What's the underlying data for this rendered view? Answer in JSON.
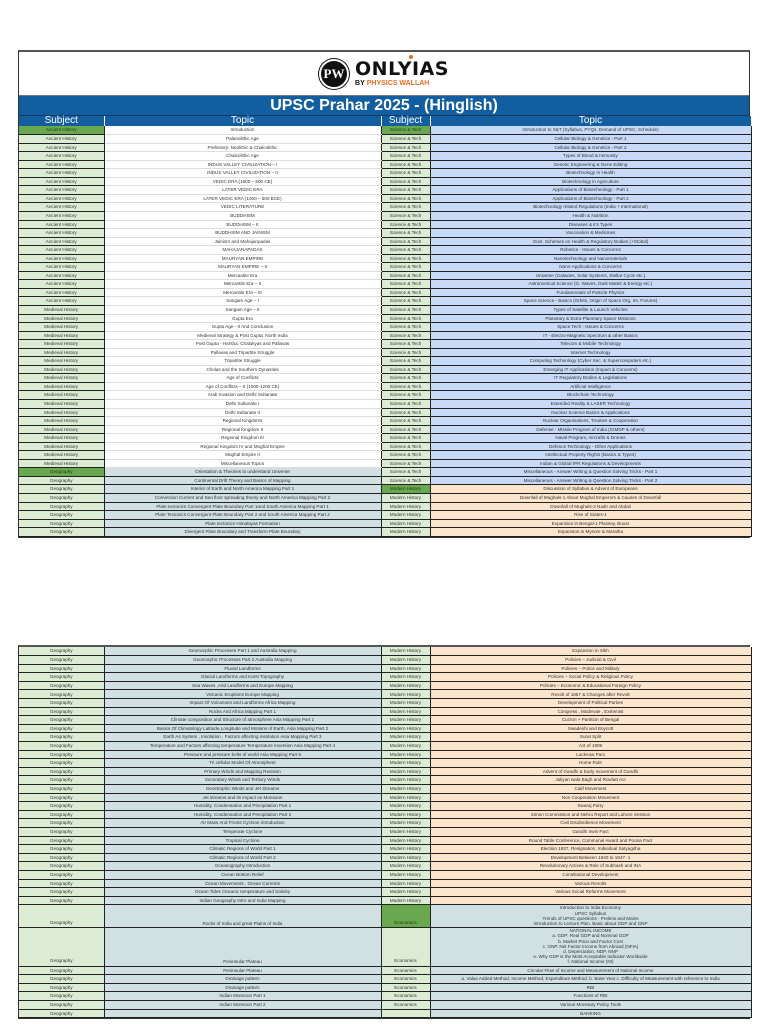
{
  "header": {
    "logo_mark": "PW",
    "brand_name": "ONLYIAS",
    "brand_by": "BY",
    "brand_sub": "PHYSICS WALLAH",
    "title": "UPSC Prahar 2025 - (Hinglish)",
    "columns": [
      "Subject",
      "Topic",
      "Subject",
      "Topic"
    ]
  },
  "colors": {
    "header_blue": "#135ea1",
    "subject_green_light": "#dcebd3",
    "subject_green_first": "#6aa84f",
    "science_tech_blue": "#c9daf8",
    "geography_blue": "#d0e0e3",
    "modern_history_peach": "#fce5cd",
    "brand_orange": "#f26b21"
  },
  "page1": {
    "left": [
      {
        "subject": "Ancient History",
        "topic": "Introduction",
        "first": true
      },
      {
        "subject": "Ancient History",
        "topic": "Palaeolithic Age"
      },
      {
        "subject": "Ancient History",
        "topic": "Prehistory: Neolithic & Chalcolithic"
      },
      {
        "subject": "Ancient History",
        "topic": "Chalcolithic Age"
      },
      {
        "subject": "Ancient History",
        "topic": "INDUS VALLEY CIVILIZATION – I"
      },
      {
        "subject": "Ancient History",
        "topic": "INDUS VALLEY CIVILIZATION – II"
      },
      {
        "subject": "Ancient History",
        "topic": "VEDIC ERA (1500 – 500 CE)"
      },
      {
        "subject": "Ancient History",
        "topic": "LATER VEDIC ERA"
      },
      {
        "subject": "Ancient History",
        "topic": "LATER VEDIC ERA (1000 – 500 BCE)"
      },
      {
        "subject": "Ancient History",
        "topic": "VEDIC LITERATURE"
      },
      {
        "subject": "Ancient History",
        "topic": "BUDDHISM"
      },
      {
        "subject": "Ancient History",
        "topic": "BUDDHISM – II"
      },
      {
        "subject": "Ancient History",
        "topic": "BUDDHISM AND JAINISM"
      },
      {
        "subject": "Ancient History",
        "topic": "Jainism and Mahajanpadas"
      },
      {
        "subject": "Ancient History",
        "topic": "MAHAJANAPADAS"
      },
      {
        "subject": "Ancient History",
        "topic": "MAURYAN EMPIRE"
      },
      {
        "subject": "Ancient History",
        "topic": "MAURYAN EMPIRE – II"
      },
      {
        "subject": "Ancient History",
        "topic": "Mercantile Era"
      },
      {
        "subject": "Ancient History",
        "topic": "Mercantile Era – II"
      },
      {
        "subject": "Ancient History",
        "topic": "Mercantile Era – III"
      },
      {
        "subject": "Ancient History",
        "topic": "Sangam Age – I"
      },
      {
        "subject": "Medieval History",
        "topic": "Sangam Age – II"
      },
      {
        "subject": "Medieval History",
        "topic": "Gupta Era"
      },
      {
        "subject": "Medieval History",
        "topic": "Gupta Age - II And Conclusion"
      },
      {
        "subject": "Medieval History",
        "topic": "Medieval Strategy & Post Gupta: North India"
      },
      {
        "subject": "Medieval History",
        "topic": "Post Gupta - Harsha, Chalukyas and Pallavas"
      },
      {
        "subject": "Medieval History",
        "topic": "Pallavas and Tripartite Struggle"
      },
      {
        "subject": "Medieval History",
        "topic": "Tripartite Struggle"
      },
      {
        "subject": "Medieval History",
        "topic": "Cholas and the Southern Dynasties"
      },
      {
        "subject": "Medieval History",
        "topic": "Age of Conflicts"
      },
      {
        "subject": "Medieval History",
        "topic": "Age of Conflicts – II (1000-1200 CE)"
      },
      {
        "subject": "Medieval History",
        "topic": "Arab Invasion and Delhi Sultanate"
      },
      {
        "subject": "Medieval History",
        "topic": "Delhi Sultanate I"
      },
      {
        "subject": "Medieval History",
        "topic": "Delhi Sultanate II"
      },
      {
        "subject": "Medieval History",
        "topic": "Regional Kingdoms"
      },
      {
        "subject": "Medieval History",
        "topic": "Regional Kingdom II"
      },
      {
        "subject": "Medieval History",
        "topic": "Regional Kingdom III"
      },
      {
        "subject": "Medieval History",
        "topic": "Regional Kingdom IV and Mughal Empire"
      },
      {
        "subject": "Medieval History",
        "topic": "Mughal Empire II"
      },
      {
        "subject": "Medieval History",
        "topic": "Miscellaneous Topics"
      },
      {
        "subject": "Geography",
        "topic": "Orientation & Theories to understand Universe",
        "first": true
      },
      {
        "subject": "Geography",
        "topic": "Continental Drift Theory and Basics of Mapping"
      },
      {
        "subject": "Geography",
        "topic": "Interior of Earth and North America Mapping Part 1"
      },
      {
        "subject": "Geography",
        "topic": "Convection Current and Sea floor spreading theory and North America Mapping Part 2"
      },
      {
        "subject": "Geography",
        "topic": "Plate tectonics Convergent Plate Boundary Part 1and South America Mapping Part 1"
      },
      {
        "subject": "Geography",
        "topic": "Plate Tectonics Convergent Plate Boundary Part 2 and South America Mapping Part 2"
      },
      {
        "subject": "Geography",
        "topic": "Plate tectonics Himalayas Formation"
      },
      {
        "subject": "Geography",
        "topic": "Divergent Plate Boundary and Transform Plate Boundary"
      }
    ],
    "right": [
      {
        "subject": "Science & Tech",
        "topic": "Introduction to S&T (Syllabus, PYQs, Demand of UPSC, Schedule)",
        "first": true
      },
      {
        "subject": "Science & Tech",
        "topic": "Cellular Biology & Genetics - Part 1"
      },
      {
        "subject": "Science & Tech",
        "topic": "Cellular Biology & Genetics - Part 2"
      },
      {
        "subject": "Science & Tech",
        "topic": "Types of Blood & Immunity"
      },
      {
        "subject": "Science & Tech",
        "topic": "Genetic Engineering & Gene Editing"
      },
      {
        "subject": "Science & Tech",
        "topic": "Biotechnology In Health"
      },
      {
        "subject": "Science & Tech",
        "topic": "Biotechnology in Agriculture"
      },
      {
        "subject": "Science & Tech",
        "topic": "Applications of Biotechnology - Part 1"
      },
      {
        "subject": "Science & Tech",
        "topic": "Applications of Biotechnology - Part 2"
      },
      {
        "subject": "Science & Tech",
        "topic": "Biotechnology related Regulations (India + International)"
      },
      {
        "subject": "Science & Tech",
        "topic": "Health & Nutrition"
      },
      {
        "subject": "Science & Tech",
        "topic": "Diseases & it's Types"
      },
      {
        "subject": "Science & Tech",
        "topic": "Vaccination & Medicines"
      },
      {
        "subject": "Science & Tech",
        "topic": "Govt. Schemes on Health & Regulatory Bodies (+Global)"
      },
      {
        "subject": "Science & Tech",
        "topic": "Robotics - Issues & Concerns"
      },
      {
        "subject": "Science & Tech",
        "topic": "Nanotechnology and Nanomaterials"
      },
      {
        "subject": "Science & Tech",
        "topic": "Nano-Applications & Concerns"
      },
      {
        "subject": "Science & Tech",
        "topic": "Universe (Galaxies, Solar Systems, Stellar Cycle etc.)"
      },
      {
        "subject": "Science & Tech",
        "topic": "Astronomical Science (G. Waves, Dark Matter & Energy etc.)"
      },
      {
        "subject": "Science & Tech",
        "topic": "Fundamentals of Particle Physics"
      },
      {
        "subject": "Science & Tech",
        "topic": "Space Science - Basics (Orbits, Origin of Space Org, Int. Forums)"
      },
      {
        "subject": "Science & Tech",
        "topic": "Types of Satellite & Launch Vehicles"
      },
      {
        "subject": "Science & Tech",
        "topic": "Planetary & Extra-Planetary Space Missions"
      },
      {
        "subject": "Science & Tech",
        "topic": "Space Tech - Issues & Concerns"
      },
      {
        "subject": "Science & Tech",
        "topic": "IT - Electro-Magnetic Spectrum & other Basics"
      },
      {
        "subject": "Science & Tech",
        "topic": "Telecom & Mobile Technology"
      },
      {
        "subject": "Science & Tech",
        "topic": "Internet Technology"
      },
      {
        "subject": "Science & Tech",
        "topic": "Computing Technology (Cyber Sec. & Supercomputers etc.)"
      },
      {
        "subject": "Science & Tech",
        "topic": "Emerging IT Applications (Impact & Concerns)"
      },
      {
        "subject": "Science & Tech",
        "topic": "IT Regulatory Bodies & Legislations"
      },
      {
        "subject": "Science & Tech",
        "topic": "Artificial Intelligence"
      },
      {
        "subject": "Science & Tech",
        "topic": "Blockchain Technology"
      },
      {
        "subject": "Science & Tech",
        "topic": "Extended Reality & LASER Technology"
      },
      {
        "subject": "Science & Tech",
        "topic": "Nuclear Science Basics & Applications"
      },
      {
        "subject": "Science & Tech",
        "topic": "Nuclear Organisations, Treaties & Cooperation"
      },
      {
        "subject": "Science & Tech",
        "topic": "Defense - Missile Program of India (IGMDP & others)"
      },
      {
        "subject": "Science & Tech",
        "topic": "Naval Program, Aircrafts & Drones"
      },
      {
        "subject": "Science & Tech",
        "topic": "Defence Technology - Other Applications"
      },
      {
        "subject": "Science & Tech",
        "topic": "Intellectual Property Rights (Basics & Types)"
      },
      {
        "subject": "Science & Tech",
        "topic": "Indian & Global IPR Regulations & Developments"
      },
      {
        "subject": "Science & Tech",
        "topic": "Miscellaneous - Answer Writing & Question Solving Tricks - Part 1"
      },
      {
        "subject": "Science & Tech",
        "topic": "Miscellaneous - Answer Writing & Question Solving Tricks - Part 2"
      },
      {
        "subject": "Modern History",
        "topic": "Discussion of Syllabus & Advent of Europeans",
        "first": true
      },
      {
        "subject": "Modern History",
        "topic": "Downfall of Mughals-1 About Mughal Emperors & Causes of Downfall"
      },
      {
        "subject": "Modern History",
        "topic": "Downfall of Mughals-3 Nadir and Abdali"
      },
      {
        "subject": "Modern History",
        "topic": "Rise of States-1"
      },
      {
        "subject": "Modern History",
        "topic": "Expansion in Bengal-1 Plassey, Buxar"
      },
      {
        "subject": "Modern History",
        "topic": "Expansion in Mysore & Maratha"
      }
    ]
  },
  "page2": {
    "left": [
      {
        "subject": "Geography",
        "topic": "Geomorphic Processes Part 1 and Australia Mapping"
      },
      {
        "subject": "Geography",
        "topic": "Geomorphic Processes Part 2 Australia Mapping"
      },
      {
        "subject": "Geography",
        "topic": "Fluvial Landforms"
      },
      {
        "subject": "Geography",
        "topic": "Glacial Landforms and  Karst Topography"
      },
      {
        "subject": "Geography",
        "topic": "Sea Waves ,Arid Landforms and Europe Mapping"
      },
      {
        "subject": "Geography",
        "topic": "Volcanic Eruptions Europe Mapping"
      },
      {
        "subject": "Geography",
        "topic": "Impact Of Volcanoes and Landforms Africa Mapping"
      },
      {
        "subject": "Geography",
        "topic": "Rocks And  Africa Mapping Part 1"
      },
      {
        "subject": "Geography",
        "topic": "Climate composition and Structure of atmosphere Asia Mapping Part 1"
      },
      {
        "subject": "Geography",
        "topic": "Basics Of Climatology Latitude,Longitude and Motions of Earth, Asia Mapping Part 2"
      },
      {
        "subject": "Geography",
        "topic": "Earth As System , Insolation , Factors affecting insolation Asia  Mapping Part 3"
      },
      {
        "subject": "Geography",
        "topic": "Temperature and Factors affecting temperature Temperature Inversion Asia Mapping Part 4"
      },
      {
        "subject": "Geography",
        "topic": "Pressure and pressure belts of world Asia Mapping Part 5"
      },
      {
        "subject": "Geography",
        "topic": "Tri cellular Model Of Atmosphere"
      },
      {
        "subject": "Geography",
        "topic": "Primary Winds and Mapping Revision"
      },
      {
        "subject": "Geography",
        "topic": "Secondary Winds and Tertiory Winds"
      },
      {
        "subject": "Geography",
        "topic": "Geostrophic Winds and Jet Streams"
      },
      {
        "subject": "Geography",
        "topic": "Jet streams and its impact on Monsoon"
      },
      {
        "subject": "Geography",
        "topic": "Humidity, Condensation and Precipitation Part 1"
      },
      {
        "subject": "Geography",
        "topic": "Humidity, Condensation and Precipitation Part 2"
      },
      {
        "subject": "Geography",
        "topic": "Air Mass And Fronts Cyclone introduction"
      },
      {
        "subject": "Geography",
        "topic": "Temperate Cyclone"
      },
      {
        "subject": "Geography",
        "topic": "Tropical Cyclone"
      },
      {
        "subject": "Geography",
        "topic": "Climatic Regions of World Part 1"
      },
      {
        "subject": "Geography",
        "topic": "Climatic Regions of World Part 2"
      },
      {
        "subject": "Geography",
        "topic": "Oceanography Introduction"
      },
      {
        "subject": "Geography",
        "topic": "Ocean Bottom Relief"
      },
      {
        "subject": "Geography",
        "topic": "Ocean Movements , Ocean Currents"
      },
      {
        "subject": "Geography",
        "topic": "Ocean Tides Oceanic temperature and Salinity"
      },
      {
        "subject": "Geography",
        "topic": "Indian Geography Intro and India Mapping"
      },
      {
        "subject": "Geography",
        "topic": "Rocks of India and great Plains of India",
        "rows": 4
      },
      {
        "subject": "Geography",
        "topic": "Peninsular Plateau",
        "rows": 7
      },
      {
        "subject": "Geography",
        "topic": "Peninsular Plateau"
      },
      {
        "subject": "Geography",
        "topic": "Drainage pattern"
      },
      {
        "subject": "Geography",
        "topic": "Drainage pattern"
      },
      {
        "subject": "Geography",
        "topic": "Indian Monsoon Part 1"
      },
      {
        "subject": "Geography",
        "topic": "Indian Monsoon Part 2"
      },
      {
        "subject": "Geography",
        "topic": ""
      }
    ],
    "right": [
      {
        "subject": "Modern History",
        "topic": "Expansion in Sikh"
      },
      {
        "subject": "Modern History",
        "topic": "Policies – Judicial & Civil"
      },
      {
        "subject": "Modern History",
        "topic": "Policies – Police and Military"
      },
      {
        "subject": "Modern History",
        "topic": "Policies – Social Policy & Religious Policy"
      },
      {
        "subject": "Modern History",
        "topic": "Policies – Economic & Educational Foreign Policy"
      },
      {
        "subject": "Modern History",
        "topic": "Revolt of 1857 & Changes after Revolt"
      },
      {
        "subject": "Modern History",
        "topic": "Development of Political Parties"
      },
      {
        "subject": "Modern History",
        "topic": "Congress  , Moderate , Extremist"
      },
      {
        "subject": "Modern History",
        "topic": "Curzon + Partition of Bengal"
      },
      {
        "subject": "Modern History",
        "topic": "Swadeshi and Boycott"
      },
      {
        "subject": "Modern History",
        "topic": "Surat Split"
      },
      {
        "subject": "Modern History",
        "topic": "Act of 1909"
      },
      {
        "subject": "Modern History",
        "topic": "Lucknow Pact"
      },
      {
        "subject": "Modern History",
        "topic": "Home Rule"
      },
      {
        "subject": "Modern History",
        "topic": "Advent of Gandhi & Early movement of Gandhi"
      },
      {
        "subject": "Modern History",
        "topic": "Jaliyan wala Bagh and Rowlatt Act"
      },
      {
        "subject": "Modern History",
        "topic": "Calif Movement"
      },
      {
        "subject": "Modern History",
        "topic": "Non Cooperation Movement"
      },
      {
        "subject": "Modern History",
        "topic": "Swaraj Party"
      },
      {
        "subject": "Modern History",
        "topic": "Simon Commission and Nehru Report and Lahore Session"
      },
      {
        "subject": "Modern History",
        "topic": "Civil Disobedience Movement"
      },
      {
        "subject": "Modern History",
        "topic": "Gandhi Irwin Pact"
      },
      {
        "subject": "Modern History",
        "topic": "Round Table Conference, Communal Award and Poona Pact"
      },
      {
        "subject": "Modern History",
        "topic": "Election 1937, Resignation, Individual Satyagriha"
      },
      {
        "subject": "Modern History",
        "topic": "Development Between 1940 to 1947- 1"
      },
      {
        "subject": "Modern History",
        "topic": "Revolutionary Actives & Role of Subhash and INA"
      },
      {
        "subject": "Modern History",
        "topic": "Constitutional Development"
      },
      {
        "subject": "Modern History",
        "topic": "Various Revolts"
      },
      {
        "subject": "Modern History",
        "topic": "Various Social Reforms Movement"
      },
      {
        "subject": "Modern History",
        "topic": ""
      },
      {
        "subject": "Economics",
        "first": true,
        "rows": 4,
        "lines": [
          "Introduction to India Economy",
          "UPSC Syllabus",
          "Trends of UPSC questions - Prelims and Mains",
          "Introduction to Lecture Plan. Basic about GDP and GNP"
        ]
      },
      {
        "subject": "Economics",
        "rows": 7,
        "lines": [
          "NATIONAL INCOME",
          "a. GDP: Real GDP and Nominal GDP",
          "b. Market Price and Factor Cost",
          "c. GNP. Net Factor Income from Abroad (NFIA)",
          "d. Depreciation, NDP, NNP",
          "e. Why GDP is the Most Acceptable Indicator Worldwide",
          "f. National Income (NI)"
        ]
      },
      {
        "subject": "Economics",
        "topic": "Circular Flow of Income and Measurement of National Income"
      },
      {
        "subject": "Economics",
        "topic": "a. Value Added Method, Income Method, Expenditure Method, b. Base Year c. Difficulty of Measurement with reference to India"
      },
      {
        "subject": "Economics",
        "topic": "RBI"
      },
      {
        "subject": "Economics",
        "topic": "Functions of RBI"
      },
      {
        "subject": "Economics",
        "topic": "Various Monetary Policy Tools"
      },
      {
        "subject": "",
        "topic": "BANKING"
      }
    ]
  }
}
